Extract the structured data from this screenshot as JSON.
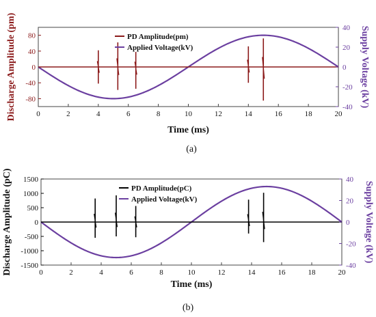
{
  "chart_data": [
    {
      "type": "line",
      "panel_label": "(a)",
      "xlabel": "Time (ms)",
      "ylabel": "Discharge Amplitude (pm)",
      "ylabel_right": "Supply Voltage (kV)",
      "xlim": [
        0,
        20
      ],
      "ylim": [
        -100,
        100
      ],
      "ylim_right": [
        -40,
        40
      ],
      "xticks": [
        0,
        2,
        4,
        6,
        8,
        10,
        12,
        14,
        16,
        18,
        20
      ],
      "yticks": [
        -80,
        -40,
        0,
        40,
        80
      ],
      "yticks_right": [
        -40,
        -20,
        0,
        20,
        40
      ],
      "legend_position": "top-center",
      "colors": {
        "pd": "#8b1a1a",
        "voltage": "#6b3fa0",
        "left_axis": "#8b1a1a",
        "right_axis": "#6b3fa0"
      },
      "series": [
        {
          "name": "PD Amplitude(pm)",
          "axis": "left",
          "kind": "pulses",
          "x": [
            4.0,
            5.3,
            6.5,
            14.0,
            15.0
          ],
          "y_max": [
            42,
            62,
            38,
            52,
            72
          ],
          "y_min": [
            -42,
            -58,
            -55,
            -40,
            -85
          ]
        },
        {
          "name": "Applied Voltage(kV)",
          "axis": "right",
          "kind": "sine",
          "amplitude": -32,
          "period": 20
        }
      ]
    },
    {
      "type": "line",
      "panel_label": "(b)",
      "xlabel": "Time (ms)",
      "ylabel": "Discharge Amplitude (pC)",
      "ylabel_right": "Supply Voltage (kV)",
      "xlim": [
        0,
        20
      ],
      "ylim": [
        -1500,
        1500
      ],
      "ylim_right": [
        -40,
        40
      ],
      "xticks": [
        0,
        2,
        4,
        6,
        8,
        10,
        12,
        14,
        16,
        18,
        20
      ],
      "yticks": [
        -1500,
        -1000,
        -500,
        0,
        500,
        1000,
        1500
      ],
      "yticks_right": [
        -40,
        -20,
        0,
        20,
        40
      ],
      "legend_position": "top-center",
      "colors": {
        "pd": "#000000",
        "voltage": "#6b3fa0",
        "left_axis": "#000000",
        "right_axis": "#6b3fa0"
      },
      "series": [
        {
          "name": "PD Amplitude(pC)",
          "axis": "left",
          "kind": "pulses",
          "x": [
            3.6,
            5.0,
            6.3,
            13.8,
            14.8
          ],
          "y_max": [
            820,
            930,
            560,
            780,
            1020
          ],
          "y_min": [
            -550,
            -500,
            -530,
            -400,
            -700
          ]
        },
        {
          "name": "Applied Voltage(kV)",
          "axis": "right",
          "kind": "sine",
          "amplitude": -33,
          "period": 20
        }
      ]
    }
  ]
}
